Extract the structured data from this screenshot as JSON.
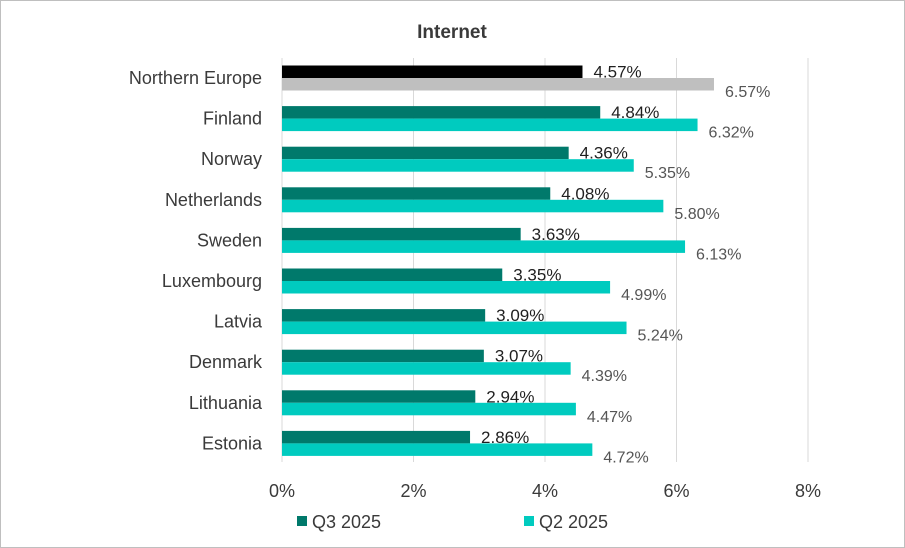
{
  "chart_data": {
    "type": "bar",
    "orientation": "horizontal",
    "title": "Internet",
    "categories": [
      "Northern Europe",
      "Finland",
      "Norway",
      "Netherlands",
      "Sweden",
      "Luxembourg",
      "Latvia",
      "Denmark",
      "Lithuania",
      "Estonia"
    ],
    "series": [
      {
        "name": "Q3 2025",
        "values": [
          4.57,
          4.84,
          4.36,
          4.08,
          3.63,
          3.35,
          3.09,
          3.07,
          2.94,
          2.86
        ],
        "labels": [
          "4.57%",
          "4.84%",
          "4.36%",
          "4.08%",
          "3.63%",
          "3.35%",
          "3.09%",
          "3.07%",
          "2.94%",
          "2.86%"
        ],
        "color": "#00796b",
        "highlight_color": "#000000"
      },
      {
        "name": "Q2 2025",
        "values": [
          6.57,
          6.32,
          5.35,
          5.8,
          6.13,
          4.99,
          5.24,
          4.39,
          4.47,
          4.72
        ],
        "labels": [
          "6.57%",
          "6.32%",
          "5.35%",
          "5.80%",
          "6.13%",
          "4.99%",
          "5.24%",
          "4.39%",
          "4.47%",
          "4.72%"
        ],
        "color": "#00cbbf",
        "highlight_color": "#bfbfbf"
      }
    ],
    "xlim": [
      0,
      8
    ],
    "x_ticks": [
      "0%",
      "2%",
      "4%",
      "6%",
      "8%"
    ],
    "grid": true,
    "legend_position": "bottom"
  }
}
